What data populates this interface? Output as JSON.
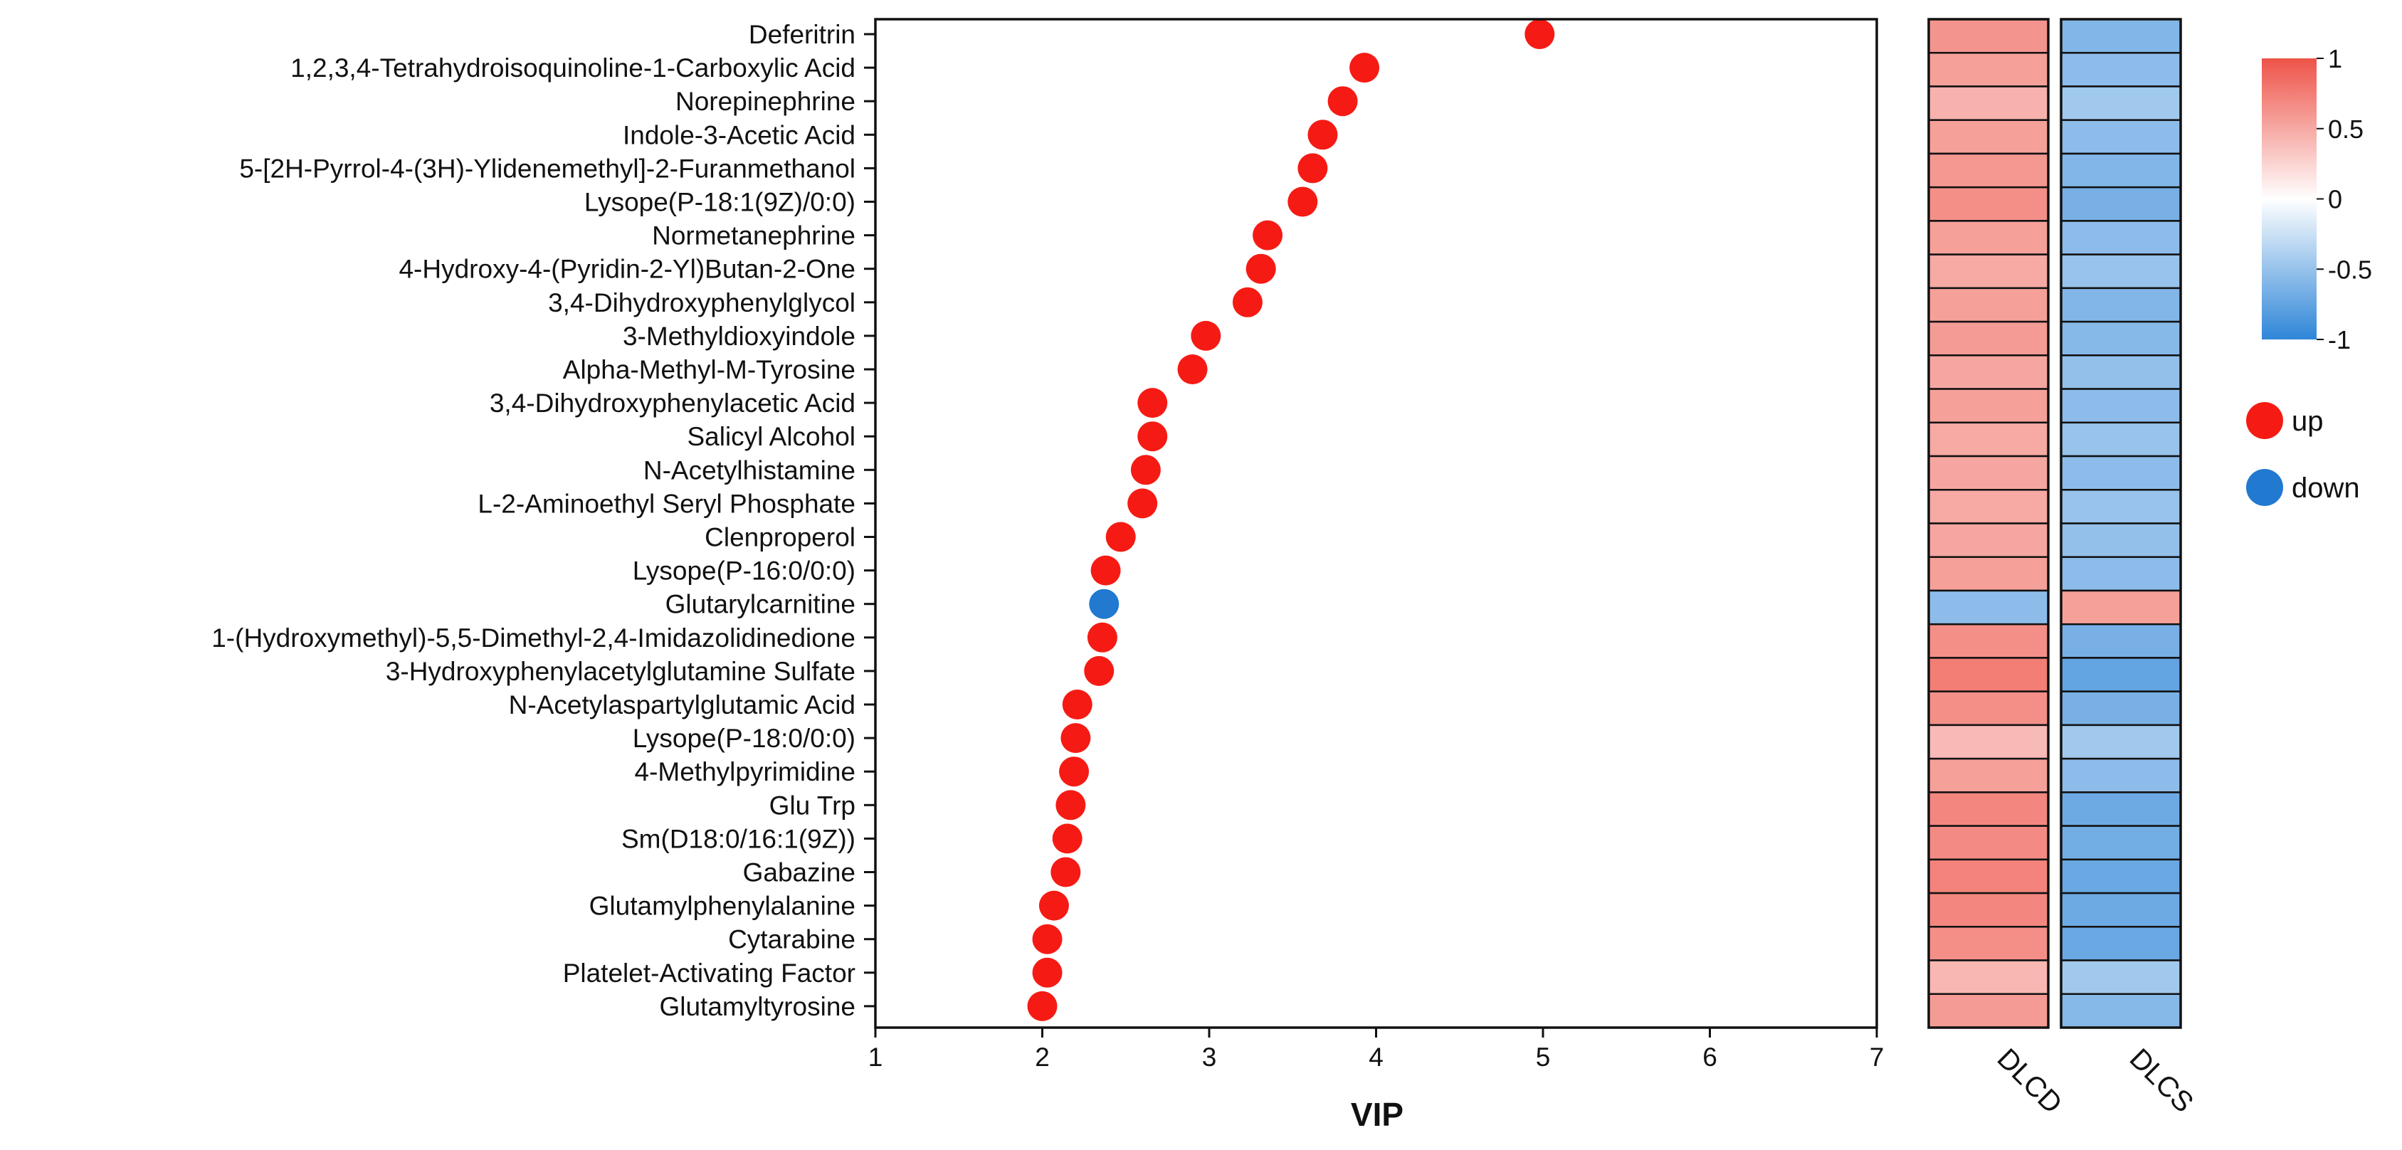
{
  "chart_data": {
    "type": "scatter",
    "xlabel": "VIP",
    "xlim": [
      1,
      7
    ],
    "xticks": [
      "1",
      "2",
      "3",
      "4",
      "5",
      "6",
      "7"
    ],
    "metabolites": [
      {
        "name": "Deferitrin",
        "vip": 4.98,
        "dir": "up",
        "dlcd": 0.62,
        "dlcs": -0.6
      },
      {
        "name": "1,2,3,4-Tetrahydroisoquinoline-1-Carboxylic Acid",
        "vip": 3.93,
        "dir": "up",
        "dlcd": 0.55,
        "dlcs": -0.55
      },
      {
        "name": "Norepinephrine",
        "vip": 3.8,
        "dir": "up",
        "dlcd": 0.45,
        "dlcs": -0.45
      },
      {
        "name": "Indole-3-Acetic Acid",
        "vip": 3.68,
        "dir": "up",
        "dlcd": 0.55,
        "dlcs": -0.55
      },
      {
        "name": "5-[2H-Pyrrol-4-(3H)-Ylidenemethyl]-2-Furanmethanol",
        "vip": 3.62,
        "dir": "up",
        "dlcd": 0.6,
        "dlcs": -0.6
      },
      {
        "name": "Lysope(P-18:1(9Z)/0:0)",
        "vip": 3.56,
        "dir": "up",
        "dlcd": 0.65,
        "dlcs": -0.65
      },
      {
        "name": "Normetanephrine",
        "vip": 3.35,
        "dir": "up",
        "dlcd": 0.55,
        "dlcs": -0.55
      },
      {
        "name": "4-Hydroxy-4-(Pyridin-2-Yl)Butan-2-One",
        "vip": 3.31,
        "dir": "up",
        "dlcd": 0.5,
        "dlcs": -0.5
      },
      {
        "name": "3,4-Dihydroxyphenylglycol",
        "vip": 3.23,
        "dir": "up",
        "dlcd": 0.55,
        "dlcs": -0.6
      },
      {
        "name": "3-Methyldioxyindole",
        "vip": 2.98,
        "dir": "up",
        "dlcd": 0.58,
        "dlcs": -0.58
      },
      {
        "name": "Alpha-Methyl-M-Tyrosine",
        "vip": 2.9,
        "dir": "up",
        "dlcd": 0.52,
        "dlcs": -0.52
      },
      {
        "name": "3,4-Dihydroxyphenylacetic Acid",
        "vip": 2.66,
        "dir": "up",
        "dlcd": 0.55,
        "dlcs": -0.55
      },
      {
        "name": "Salicyl Alcohol",
        "vip": 2.66,
        "dir": "up",
        "dlcd": 0.5,
        "dlcs": -0.5
      },
      {
        "name": "N-Acetylhistamine",
        "vip": 2.62,
        "dir": "up",
        "dlcd": 0.52,
        "dlcs": -0.55
      },
      {
        "name": "L-2-Aminoethyl Seryl Phosphate",
        "vip": 2.6,
        "dir": "up",
        "dlcd": 0.5,
        "dlcs": -0.5
      },
      {
        "name": "Clenproperol",
        "vip": 2.47,
        "dir": "up",
        "dlcd": 0.52,
        "dlcs": -0.52
      },
      {
        "name": "Lysope(P-16:0/0:0)",
        "vip": 2.38,
        "dir": "up",
        "dlcd": 0.55,
        "dlcs": -0.55
      },
      {
        "name": "Glutarylcarnitine",
        "vip": 2.37,
        "dir": "down",
        "dlcd": -0.55,
        "dlcs": 0.55
      },
      {
        "name": "1-(Hydroxymethyl)-5,5-Dimethyl-2,4-Imidazolidinedione",
        "vip": 2.36,
        "dir": "up",
        "dlcd": 0.65,
        "dlcs": -0.65
      },
      {
        "name": "3-Hydroxyphenylacetylglutamine Sulfate",
        "vip": 2.34,
        "dir": "up",
        "dlcd": 0.75,
        "dlcs": -0.75
      },
      {
        "name": "N-Acetylaspartylglutamic Acid",
        "vip": 2.21,
        "dir": "up",
        "dlcd": 0.65,
        "dlcs": -0.65
      },
      {
        "name": "Lysope(P-18:0/0:0)",
        "vip": 2.2,
        "dir": "up",
        "dlcd": 0.4,
        "dlcs": -0.45
      },
      {
        "name": "4-Methylpyrimidine",
        "vip": 2.19,
        "dir": "up",
        "dlcd": 0.55,
        "dlcs": -0.55
      },
      {
        "name": "Glu Trp",
        "vip": 2.17,
        "dir": "up",
        "dlcd": 0.7,
        "dlcs": -0.7
      },
      {
        "name": "Sm(D18:0/16:1(9Z))",
        "vip": 2.15,
        "dir": "up",
        "dlcd": 0.68,
        "dlcs": -0.68
      },
      {
        "name": "Gabazine",
        "vip": 2.14,
        "dir": "up",
        "dlcd": 0.72,
        "dlcs": -0.72
      },
      {
        "name": "Glutamylphenylalanine",
        "vip": 2.07,
        "dir": "up",
        "dlcd": 0.7,
        "dlcs": -0.7
      },
      {
        "name": "Cytarabine",
        "vip": 2.03,
        "dir": "up",
        "dlcd": 0.65,
        "dlcs": -0.72
      },
      {
        "name": "Platelet-Activating Factor",
        "vip": 2.03,
        "dir": "up",
        "dlcd": 0.42,
        "dlcs": -0.45
      },
      {
        "name": "Glutamyltyrosine",
        "vip": 2.0,
        "dir": "up",
        "dlcd": 0.58,
        "dlcs": -0.58
      }
    ],
    "heatmap_columns": [
      "DLCD",
      "DLCS"
    ],
    "colorbar": {
      "range": [
        -1,
        1
      ],
      "ticks": [
        "1",
        "0.5",
        "0",
        "-0.5",
        "-1"
      ],
      "low_color": "#2f86d8",
      "mid_color": "#ffffff",
      "high_color": "#ee5348"
    },
    "legend": {
      "position": "right",
      "items": [
        {
          "label": "up",
          "color": "#f51b14"
        },
        {
          "label": "down",
          "color": "#2179d0"
        }
      ]
    }
  }
}
